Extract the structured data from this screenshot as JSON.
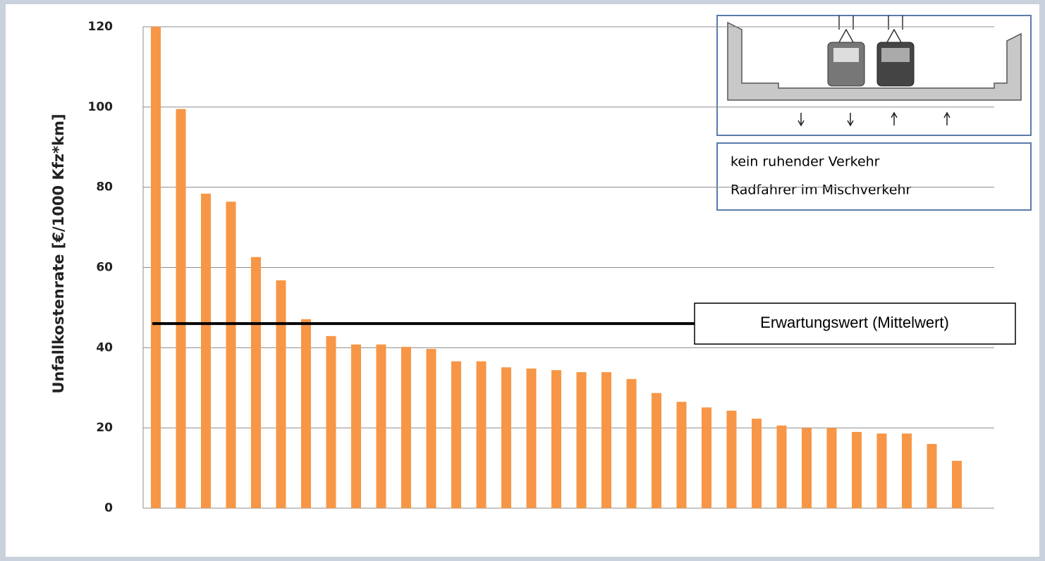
{
  "chart_data": {
    "type": "bar",
    "y_label": "Unfallkostenrate [€/1000 Kfz*km]",
    "categories": [
      null,
      null,
      null,
      null,
      null,
      null,
      null,
      null,
      null,
      null,
      null,
      null,
      null,
      null,
      null,
      null,
      null,
      null,
      null,
      null,
      null,
      null,
      null,
      null,
      null,
      null,
      null,
      null,
      null,
      null,
      null,
      null,
      null
    ],
    "values": [
      120,
      99.5,
      78.4,
      76.4,
      62.6,
      56.8,
      47.1,
      42.9,
      40.8,
      40.8,
      40.2,
      39.7,
      36.6,
      36.6,
      35.1,
      34.8,
      34.4,
      33.9,
      33.9,
      32.2,
      28.7,
      26.5,
      25.1,
      24.3,
      22.3,
      20.6,
      20.0,
      20.0,
      19.0,
      18.6,
      18.6,
      16.0,
      11.8
    ],
    "color": "#f79646",
    "ylim": [
      0,
      120
    ],
    "yticks": [
      0,
      20,
      40,
      60,
      80,
      100,
      120
    ],
    "grid": true,
    "mean_line": {
      "value": 46,
      "label": "Erwartungswert (Mittelwert)"
    },
    "annotations": [
      "kein ruhender Verkehr",
      "Radfahrer im Mischverkehr"
    ]
  }
}
